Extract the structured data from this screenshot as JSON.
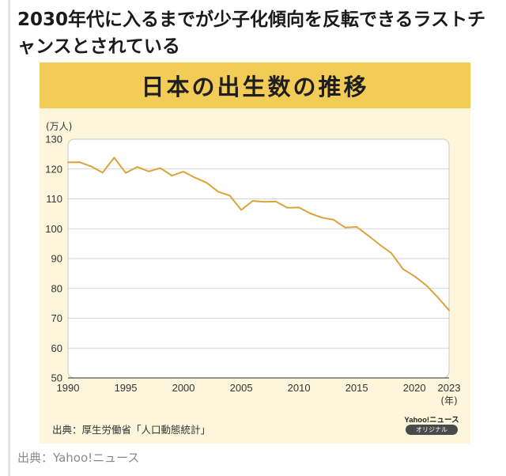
{
  "headline": "2030年代に入るまでが少子化傾向を反転できるラストチャンスとされている",
  "card": {
    "title": "日本の出生数の推移",
    "source": "出典：厚生労働省「人口動態統計」",
    "logo_text": "Yahoo!ニュース",
    "logo_badge": "オリジナル"
  },
  "credit": "出典：Yahoo!ニュース",
  "chart_data": {
    "type": "line",
    "title": "日本の出生数の推移",
    "ylabel": "(万人)",
    "xlabel": "(年)",
    "xlim": [
      1990,
      2023
    ],
    "ylim": [
      50,
      130
    ],
    "yticks": [
      50,
      60,
      70,
      80,
      90,
      100,
      110,
      120,
      130
    ],
    "xticks": [
      1990,
      1995,
      2000,
      2005,
      2010,
      2015,
      2020,
      2023
    ],
    "grid": true,
    "colors": {
      "line": "#dba33a",
      "grid": "#c9c9c9",
      "plot_bg": "#ffffff"
    },
    "x": [
      1990,
      1991,
      1992,
      1993,
      1994,
      1995,
      1996,
      1997,
      1998,
      1999,
      2000,
      2001,
      2002,
      2003,
      2004,
      2005,
      2006,
      2007,
      2008,
      2009,
      2010,
      2011,
      2012,
      2013,
      2014,
      2015,
      2016,
      2017,
      2018,
      2019,
      2020,
      2021,
      2022,
      2023
    ],
    "values": [
      122.2,
      122.3,
      120.9,
      118.8,
      123.8,
      118.7,
      120.7,
      119.2,
      120.3,
      117.8,
      119.1,
      117.1,
      115.4,
      112.4,
      111.1,
      106.3,
      109.3,
      109.0,
      109.1,
      107.0,
      107.1,
      105.1,
      103.7,
      103.0,
      100.4,
      100.6,
      97.7,
      94.6,
      91.8,
      86.5,
      84.1,
      81.1,
      77.1,
      72.7
    ]
  }
}
